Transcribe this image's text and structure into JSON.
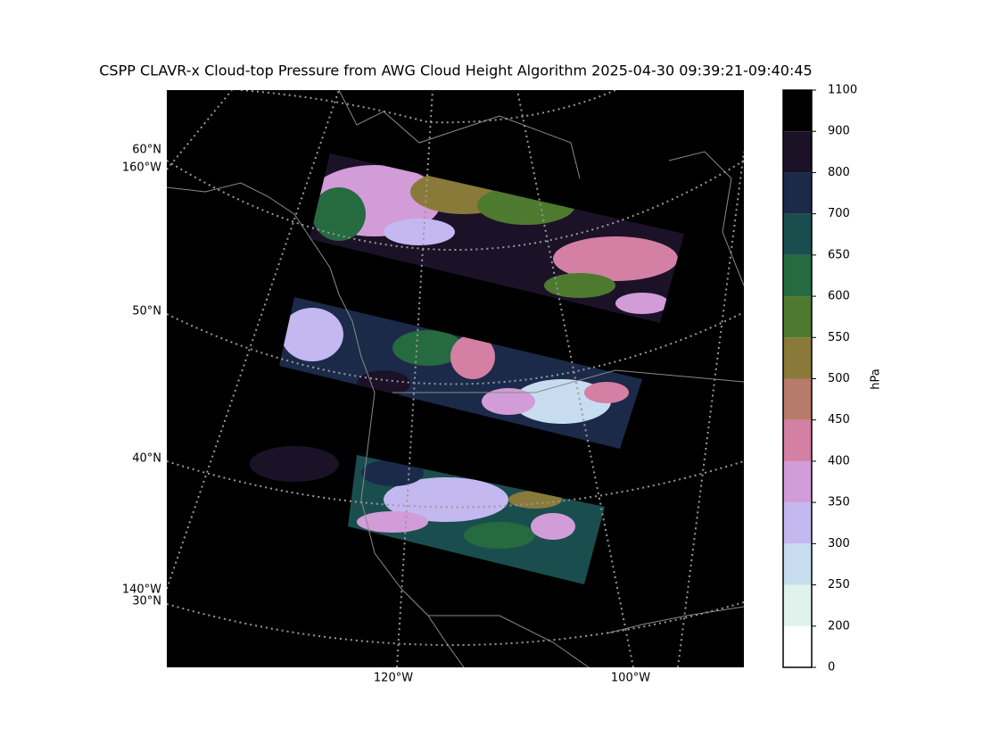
{
  "title": "CSPP CLAVR-x Cloud-top Pressure from AWG Cloud Height Algorithm 2025-04-30 09:39:21-09:40:45",
  "map": {
    "lat_labels": [
      "60°N",
      "50°N",
      "40°N",
      "30°N"
    ],
    "lon_labels_left": [
      "160°W",
      "140°W"
    ],
    "lon_labels_bottom": [
      "120°W",
      "100°W"
    ]
  },
  "colorbar": {
    "label": "hPa",
    "ticks": [
      0,
      200,
      250,
      300,
      350,
      400,
      450,
      500,
      550,
      600,
      650,
      700,
      800,
      900,
      1100
    ],
    "colors": [
      "#ffffff",
      "#dff2ec",
      "#c8dcf0",
      "#c4b8f0",
      "#d29cd8",
      "#d47fa4",
      "#b87a6a",
      "#8a7a3a",
      "#4e7a30",
      "#266a40",
      "#1a4e4e",
      "#1c2a4a",
      "#1c1228",
      "#000000"
    ]
  }
}
